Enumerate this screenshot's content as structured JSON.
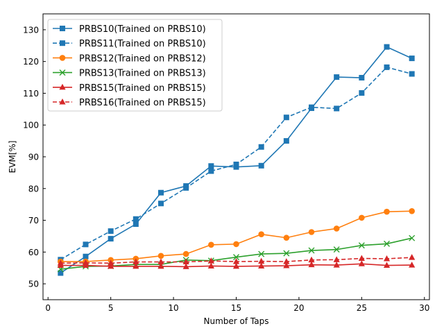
{
  "chart_data": {
    "type": "line",
    "title": "",
    "xlabel": "Number of Taps",
    "ylabel": "EVM[%]",
    "xlim": [
      -0.4,
      30.4
    ],
    "ylim": [
      45,
      135
    ],
    "xticks": [
      0,
      5,
      10,
      15,
      20,
      25,
      30
    ],
    "yticks": [
      50,
      60,
      70,
      80,
      90,
      100,
      110,
      120,
      130
    ],
    "grid": false,
    "legend_position": "top-left",
    "x": [
      1,
      3,
      5,
      7,
      9,
      11,
      13,
      15,
      17,
      19,
      21,
      23,
      25,
      27,
      29
    ],
    "series": [
      {
        "name": "PRBS10(Trained on PRBS10)",
        "color": "#1f77b4",
        "linestyle": "solid",
        "marker": "square",
        "values": [
          53.4,
          58.6,
          64.2,
          68.8,
          78.7,
          80.8,
          87.1,
          86.8,
          87.2,
          95.0,
          105.3,
          115.1,
          114.9,
          124.6,
          121.0
        ]
      },
      {
        "name": "PRBS11(Trained on PRBS10)",
        "color": "#1f77b4",
        "linestyle": "dashed",
        "marker": "square",
        "values": [
          57.6,
          62.4,
          66.6,
          70.4,
          75.3,
          80.2,
          85.5,
          87.6,
          93.1,
          102.4,
          105.6,
          105.2,
          110.1,
          118.2,
          116.1
        ]
      },
      {
        "name": "PRBS12(Trained on PRBS12)",
        "color": "#ff7f0e",
        "linestyle": "solid",
        "marker": "circle",
        "values": [
          57.0,
          57.0,
          57.5,
          57.9,
          58.8,
          59.4,
          62.3,
          62.5,
          65.6,
          64.5,
          66.3,
          67.4,
          70.8,
          72.7,
          72.9
        ]
      },
      {
        "name": "PRBS13(Trained on PRBS13)",
        "color": "#2ca02c",
        "linestyle": "solid",
        "marker": "x",
        "values": [
          54.6,
          55.5,
          55.6,
          56.1,
          56.1,
          57.5,
          57.3,
          58.4,
          59.4,
          59.6,
          60.5,
          60.8,
          62.1,
          62.6,
          64.4
        ]
      },
      {
        "name": "PRBS15(Trained on PRBS15)",
        "color": "#d62728",
        "linestyle": "solid",
        "marker": "triangle",
        "values": [
          55.8,
          55.8,
          55.5,
          55.5,
          55.5,
          55.4,
          55.6,
          55.5,
          55.6,
          55.7,
          56.0,
          55.9,
          56.3,
          55.8,
          55.9
        ]
      },
      {
        "name": "PRBS16(Trained on PRBS15)",
        "color": "#d62728",
        "linestyle": "dashed",
        "marker": "triangle",
        "values": [
          56.5,
          56.6,
          56.5,
          56.9,
          56.9,
          56.9,
          57.2,
          57.0,
          57.1,
          57.0,
          57.5,
          57.6,
          58.0,
          57.9,
          58.3
        ]
      }
    ]
  }
}
